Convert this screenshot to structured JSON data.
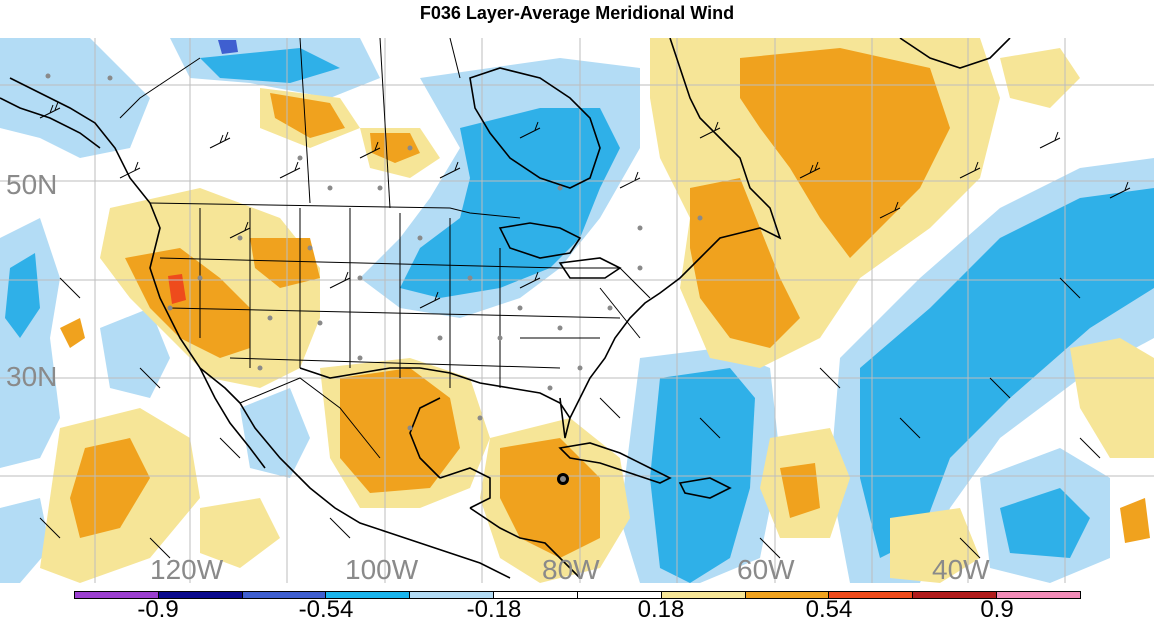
{
  "title": "F036 Layer-Average Meridional Wind",
  "lat_labels": [
    "50N",
    "30N"
  ],
  "lon_labels": [
    "120W",
    "100W",
    "80W",
    "60W",
    "40W"
  ],
  "colorbar": {
    "labels": [
      "-0.9",
      "-0.54",
      "-0.18",
      "0.18",
      "0.54",
      "0.9"
    ],
    "colors": [
      "#9b3fd0",
      "#0a0a8c",
      "#3f5fd0",
      "#1ab4ec",
      "#b3dcf5",
      "#ffffff",
      "#ffffff",
      "#f6e597",
      "#f0a21e",
      "#ee4b1c",
      "#b01c1c",
      "#f28cb8"
    ]
  },
  "palette": {
    "blue_fill": "#2fb0e8",
    "light_blue_fill": "#b3dcf5",
    "yellow_fill": "#f6e597",
    "orange_fill": "#f0a21e",
    "red_fill": "#ee4b1c",
    "dark_blue_fill": "#3f5fd0"
  }
}
